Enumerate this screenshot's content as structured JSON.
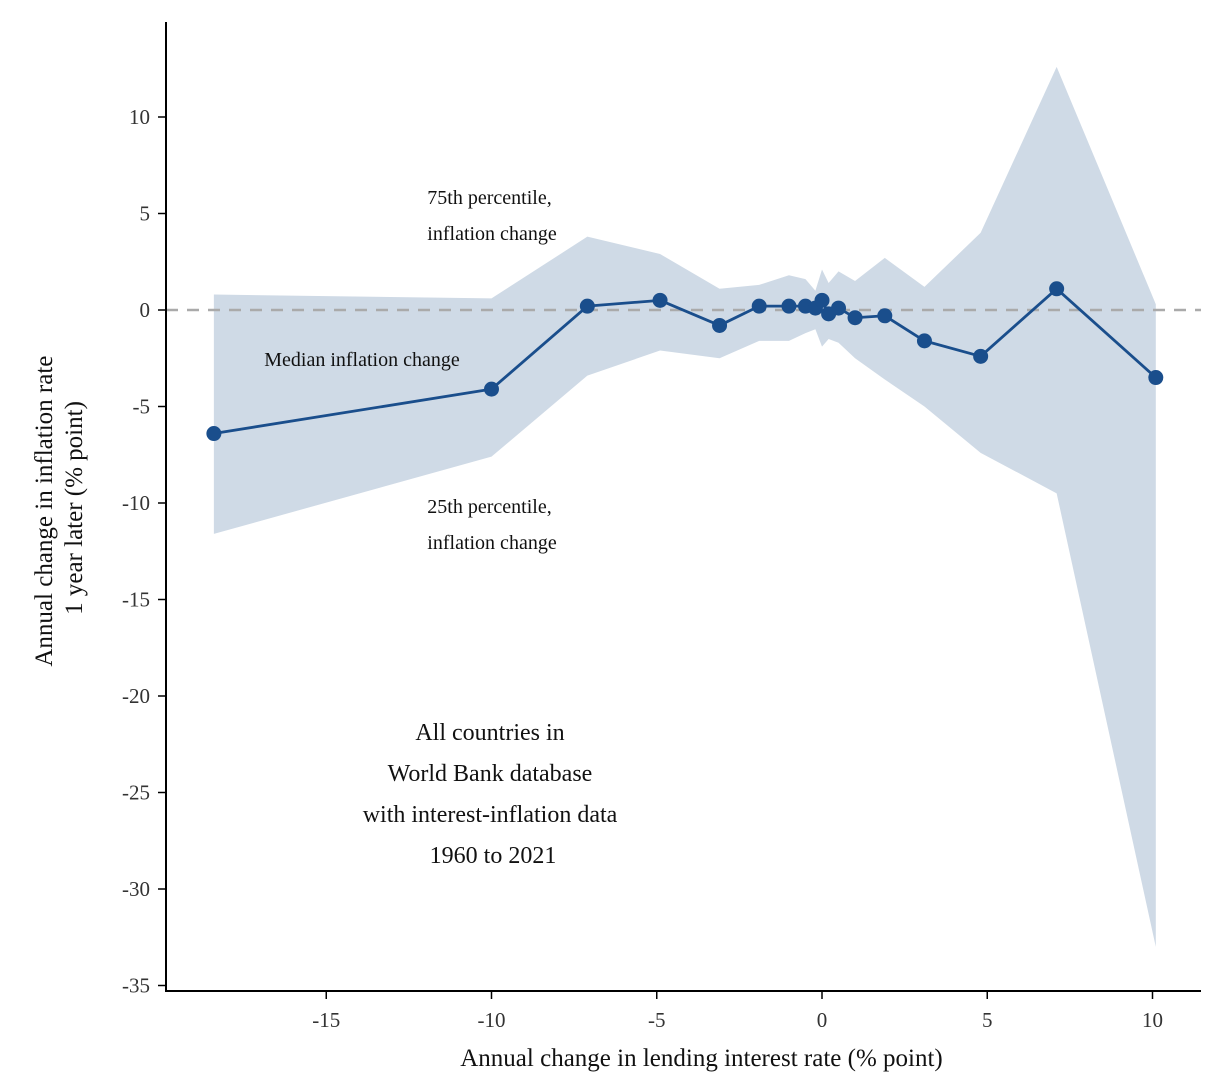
{
  "chart_data": {
    "type": "line",
    "xlabel": "Annual change in lending interest rate (% point)",
    "ylabel_lines": [
      "Annual change in inflation rate",
      "1 year later (% point)"
    ],
    "xlim": [
      -20,
      11.5
    ],
    "ylim": [
      -35,
      15
    ],
    "x_ticks": [
      -15,
      -10,
      -5,
      0,
      5,
      10
    ],
    "x_tick_labels": [
      "-15",
      "-10",
      "-5",
      "0",
      "5",
      "10"
    ],
    "y_ticks": [
      10,
      5,
      0,
      -5,
      -10,
      -15,
      -20,
      -25,
      -30,
      -35
    ],
    "y_tick_labels": [
      "10",
      "5",
      "0",
      "-5",
      "-10",
      "-15",
      "-20",
      "-25",
      "-30",
      "-35"
    ],
    "reference_line_y": 0,
    "colors": {
      "median": "#1a4e8c",
      "band": "#cfdae6",
      "reference": "#aaaaaa"
    },
    "median": {
      "x": [
        -18.4,
        -10.0,
        -7.1,
        -4.9,
        -3.1,
        -1.9,
        -1.0,
        -0.5,
        -0.2,
        0.0,
        0.2,
        0.5,
        1.0,
        1.9,
        3.1,
        4.8,
        7.1,
        10.1
      ],
      "y": [
        -6.4,
        -4.1,
        0.2,
        0.5,
        -0.8,
        0.2,
        0.2,
        0.2,
        0.1,
        0.5,
        -0.2,
        0.1,
        -0.4,
        -0.3,
        -1.6,
        -2.4,
        1.1,
        -3.5
      ]
    },
    "band": {
      "x": [
        -18.4,
        -10.0,
        -7.1,
        -4.9,
        -3.1,
        -1.9,
        -1.0,
        -0.5,
        -0.2,
        0.0,
        0.2,
        0.5,
        1.0,
        1.9,
        3.1,
        4.8,
        7.1,
        10.1
      ],
      "p75": [
        0.8,
        0.6,
        3.8,
        2.9,
        1.1,
        1.3,
        1.8,
        1.6,
        1.0,
        2.1,
        1.4,
        2.0,
        1.5,
        2.7,
        1.2,
        4.0,
        12.6,
        0.3
      ],
      "p25": [
        -11.6,
        -7.6,
        -3.4,
        -2.1,
        -2.5,
        -1.6,
        -1.6,
        -1.2,
        -1.0,
        -1.9,
        -1.5,
        -1.7,
        -2.5,
        -3.6,
        -5.0,
        -7.4,
        -9.5,
        -33.0
      ]
    },
    "annotations": {
      "p75_lines": [
        "75th percentile,",
        "inflation change"
      ],
      "median_label": "Median inflation change",
      "p25_lines": [
        "25th percentile,",
        "inflation change"
      ],
      "note_lines": [
        "All countries in",
        "World Bank database",
        "with interest-inflation data",
        "1960 to 2021"
      ]
    }
  }
}
